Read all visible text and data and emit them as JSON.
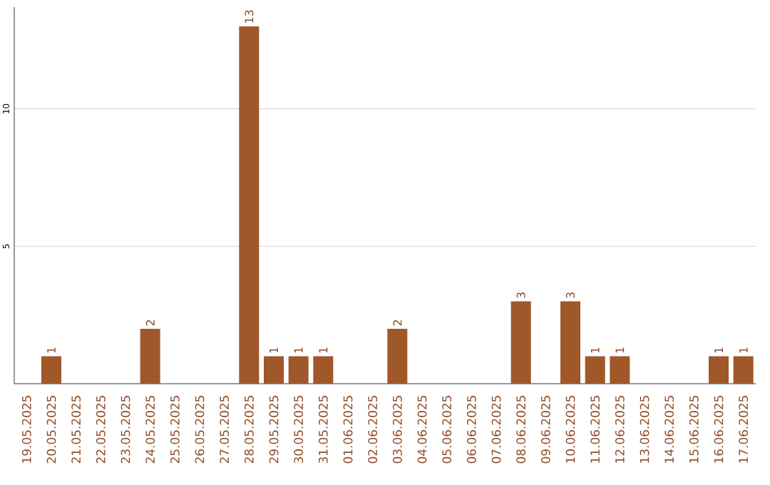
{
  "chart_data": {
    "type": "bar",
    "categories": [
      "19.05.2025",
      "20.05.2025",
      "21.05.2025",
      "22.05.2025",
      "23.05.2025",
      "24.05.2025",
      "25.05.2025",
      "26.05.2025",
      "27.05.2025",
      "28.05.2025",
      "29.05.2025",
      "30.05.2025",
      "31.05.2025",
      "01.06.2025",
      "02.06.2025",
      "03.06.2025",
      "04.06.2025",
      "05.06.2025",
      "06.06.2025",
      "07.06.2025",
      "08.06.2025",
      "09.06.2025",
      "10.06.2025",
      "11.06.2025",
      "12.06.2025",
      "13.06.2025",
      "14.06.2025",
      "15.06.2025",
      "16.06.2025",
      "17.06.2025"
    ],
    "values": [
      0,
      1,
      0,
      0,
      0,
      2,
      0,
      0,
      0,
      13,
      1,
      1,
      1,
      0,
      0,
      2,
      0,
      0,
      0,
      0,
      3,
      0,
      3,
      1,
      1,
      0,
      0,
      0,
      1,
      1
    ],
    "value_labels": [
      null,
      "1",
      null,
      null,
      null,
      "2",
      null,
      null,
      null,
      "13",
      "1",
      "1",
      "1",
      null,
      null,
      "2",
      null,
      null,
      null,
      null,
      "3",
      null,
      "3",
      "1",
      "1",
      null,
      null,
      null,
      "1",
      "1"
    ],
    "color": "#a0572a",
    "ylim": [
      0,
      13.7
    ],
    "yticks": [
      5,
      10
    ],
    "grid": "y"
  }
}
